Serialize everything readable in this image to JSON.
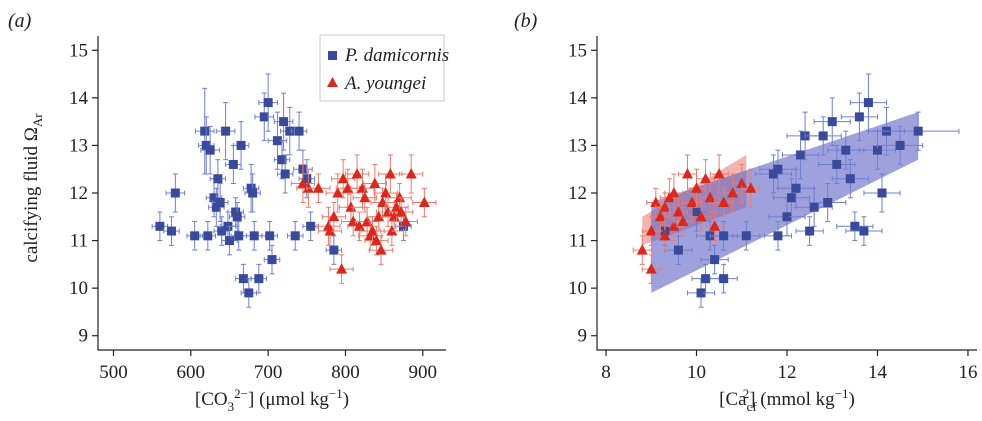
{
  "colors": {
    "series_blue": "#3a4a9a",
    "series_red": "#d8291f",
    "errbar_blue": "#6f7fd0",
    "errbar_red": "#f07a6c",
    "band": "#5e62c4",
    "axis": "#222222"
  },
  "chart_data": [
    {
      "type": "scatter",
      "panel_label": "(a)",
      "xlabel": "[CO3 2−] (μmol kg−1)",
      "ylabel": "calcifying fluid ΩAr",
      "xlim": [
        480,
        930
      ],
      "ylim": [
        8.7,
        15.3
      ],
      "xticks": [
        500,
        600,
        700,
        800,
        900
      ],
      "yticks": [
        9,
        10,
        11,
        12,
        13,
        14,
        15
      ],
      "legend": {
        "position": "top-right",
        "entries": [
          "P. damicornis",
          "A. youngei"
        ]
      },
      "grid": false,
      "series": [
        {
          "name": "P. damicornis",
          "marker": "square",
          "points": [
            {
              "x": 560,
              "y": 11.3,
              "xe": 10,
              "ye": 0.3
            },
            {
              "x": 575,
              "y": 11.2,
              "xe": 10,
              "ye": 0.3
            },
            {
              "x": 580,
              "y": 12.0,
              "xe": 12,
              "ye": 0.4
            },
            {
              "x": 605,
              "y": 11.1,
              "xe": 10,
              "ye": 0.3
            },
            {
              "x": 618,
              "y": 13.3,
              "xe": 12,
              "ye": 0.9
            },
            {
              "x": 620,
              "y": 13.0,
              "xe": 10,
              "ye": 0.6
            },
            {
              "x": 622,
              "y": 11.1,
              "xe": 10,
              "ye": 0.3
            },
            {
              "x": 625,
              "y": 12.9,
              "xe": 12,
              "ye": 0.5
            },
            {
              "x": 630,
              "y": 11.9,
              "xe": 10,
              "ye": 0.4
            },
            {
              "x": 633,
              "y": 11.7,
              "xe": 10,
              "ye": 0.4
            },
            {
              "x": 635,
              "y": 12.3,
              "xe": 10,
              "ye": 0.4
            },
            {
              "x": 638,
              "y": 11.8,
              "xe": 10,
              "ye": 0.4
            },
            {
              "x": 640,
              "y": 11.2,
              "xe": 10,
              "ye": 0.3
            },
            {
              "x": 645,
              "y": 13.3,
              "xe": 12,
              "ye": 0.6
            },
            {
              "x": 648,
              "y": 11.3,
              "xe": 10,
              "ye": 0.3
            },
            {
              "x": 650,
              "y": 11.0,
              "xe": 10,
              "ye": 0.3
            },
            {
              "x": 655,
              "y": 12.6,
              "xe": 10,
              "ye": 0.4
            },
            {
              "x": 658,
              "y": 11.6,
              "xe": 10,
              "ye": 0.3
            },
            {
              "x": 660,
              "y": 11.5,
              "xe": 10,
              "ye": 0.3
            },
            {
              "x": 662,
              "y": 11.1,
              "xe": 10,
              "ye": 0.3
            },
            {
              "x": 665,
              "y": 13.0,
              "xe": 10,
              "ye": 0.5
            },
            {
              "x": 668,
              "y": 10.2,
              "xe": 10,
              "ye": 0.3
            },
            {
              "x": 675,
              "y": 9.9,
              "xe": 10,
              "ye": 0.3
            },
            {
              "x": 678,
              "y": 12.1,
              "xe": 10,
              "ye": 0.5
            },
            {
              "x": 680,
              "y": 12.0,
              "xe": 10,
              "ye": 0.4
            },
            {
              "x": 682,
              "y": 11.1,
              "xe": 10,
              "ye": 0.3
            },
            {
              "x": 688,
              "y": 10.2,
              "xe": 10,
              "ye": 0.3
            },
            {
              "x": 695,
              "y": 13.6,
              "xe": 12,
              "ye": 0.5
            },
            {
              "x": 700,
              "y": 13.9,
              "xe": 12,
              "ye": 0.6
            },
            {
              "x": 702,
              "y": 11.1,
              "xe": 10,
              "ye": 0.3
            },
            {
              "x": 705,
              "y": 10.6,
              "xe": 10,
              "ye": 0.3
            },
            {
              "x": 712,
              "y": 13.1,
              "xe": 12,
              "ye": 0.6
            },
            {
              "x": 718,
              "y": 12.7,
              "xe": 10,
              "ye": 0.4
            },
            {
              "x": 720,
              "y": 13.5,
              "xe": 12,
              "ye": 0.6
            },
            {
              "x": 722,
              "y": 12.4,
              "xe": 10,
              "ye": 0.4
            },
            {
              "x": 728,
              "y": 13.3,
              "xe": 12,
              "ye": 0.5
            },
            {
              "x": 735,
              "y": 11.1,
              "xe": 10,
              "ye": 0.3
            },
            {
              "x": 740,
              "y": 13.3,
              "xe": 10,
              "ye": 0.4
            },
            {
              "x": 745,
              "y": 12.5,
              "xe": 12,
              "ye": 0.4
            },
            {
              "x": 750,
              "y": 12.3,
              "xe": 10,
              "ye": 0.4
            },
            {
              "x": 755,
              "y": 11.3,
              "xe": 10,
              "ye": 0.3
            },
            {
              "x": 785,
              "y": 10.8,
              "xe": 10,
              "ye": 0.3
            },
            {
              "x": 875,
              "y": 11.3,
              "xe": 10,
              "ye": 0.3
            }
          ]
        },
        {
          "name": "A. youngei",
          "marker": "triangle",
          "points": [
            {
              "x": 745,
              "y": 12.2,
              "xe": 15,
              "ye": 0.4
            },
            {
              "x": 752,
              "y": 12.1,
              "xe": 15,
              "ye": 0.4
            },
            {
              "x": 765,
              "y": 12.1,
              "xe": 15,
              "ye": 0.3
            },
            {
              "x": 778,
              "y": 11.3,
              "xe": 15,
              "ye": 0.4
            },
            {
              "x": 780,
              "y": 11.2,
              "xe": 15,
              "ye": 0.3
            },
            {
              "x": 785,
              "y": 11.5,
              "xe": 15,
              "ye": 0.3
            },
            {
              "x": 790,
              "y": 12.0,
              "xe": 15,
              "ye": 0.4
            },
            {
              "x": 795,
              "y": 10.4,
              "xe": 15,
              "ye": 0.3
            },
            {
              "x": 797,
              "y": 12.3,
              "xe": 15,
              "ye": 0.4
            },
            {
              "x": 803,
              "y": 12.1,
              "xe": 15,
              "ye": 0.4
            },
            {
              "x": 807,
              "y": 11.7,
              "xe": 15,
              "ye": 0.3
            },
            {
              "x": 810,
              "y": 11.4,
              "xe": 15,
              "ye": 0.3
            },
            {
              "x": 815,
              "y": 12.4,
              "xe": 15,
              "ye": 0.4
            },
            {
              "x": 818,
              "y": 11.3,
              "xe": 15,
              "ye": 0.3
            },
            {
              "x": 822,
              "y": 12.1,
              "xe": 15,
              "ye": 0.4
            },
            {
              "x": 825,
              "y": 11.9,
              "xe": 15,
              "ye": 0.3
            },
            {
              "x": 828,
              "y": 11.4,
              "xe": 15,
              "ye": 0.3
            },
            {
              "x": 832,
              "y": 11.1,
              "xe": 15,
              "ye": 0.3
            },
            {
              "x": 835,
              "y": 11.2,
              "xe": 15,
              "ye": 0.3
            },
            {
              "x": 838,
              "y": 12.2,
              "xe": 15,
              "ye": 0.4
            },
            {
              "x": 840,
              "y": 11.0,
              "xe": 15,
              "ye": 0.3
            },
            {
              "x": 843,
              "y": 11.5,
              "xe": 15,
              "ye": 0.3
            },
            {
              "x": 846,
              "y": 10.8,
              "xe": 15,
              "ye": 0.3
            },
            {
              "x": 848,
              "y": 11.8,
              "xe": 15,
              "ye": 0.3
            },
            {
              "x": 852,
              "y": 12.0,
              "xe": 15,
              "ye": 0.4
            },
            {
              "x": 855,
              "y": 11.6,
              "xe": 15,
              "ye": 0.3
            },
            {
              "x": 858,
              "y": 12.4,
              "xe": 15,
              "ye": 0.4
            },
            {
              "x": 860,
              "y": 11.2,
              "xe": 15,
              "ye": 0.3
            },
            {
              "x": 863,
              "y": 11.5,
              "xe": 15,
              "ye": 0.3
            },
            {
              "x": 866,
              "y": 11.7,
              "xe": 15,
              "ye": 0.3
            },
            {
              "x": 870,
              "y": 11.9,
              "xe": 15,
              "ye": 0.3
            },
            {
              "x": 872,
              "y": 11.6,
              "xe": 15,
              "ye": 0.3
            },
            {
              "x": 878,
              "y": 11.4,
              "xe": 15,
              "ye": 0.3
            },
            {
              "x": 885,
              "y": 12.4,
              "xe": 15,
              "ye": 0.4
            },
            {
              "x": 902,
              "y": 11.8,
              "xe": 15,
              "ye": 0.3
            }
          ]
        }
      ]
    },
    {
      "type": "scatter",
      "panel_label": "(b)",
      "xlabel": "[Ca cf 2] (mmol kg−1)",
      "ylabel": "",
      "xlim": [
        7.8,
        16.2
      ],
      "ylim": [
        8.7,
        15.3
      ],
      "xticks": [
        8,
        10,
        12,
        14,
        16
      ],
      "yticks": [
        9,
        10,
        11,
        12,
        13,
        14,
        15
      ],
      "grid": false,
      "bands": [
        {
          "name": "red-band",
          "x": [
            8.8,
            11.1
          ],
          "y_lower": [
            10.9,
            11.7
          ],
          "y_upper": [
            11.5,
            12.8
          ]
        },
        {
          "name": "blue-band",
          "x": [
            9.0,
            14.9
          ],
          "y_lower": [
            9.9,
            12.7
          ],
          "y_upper": [
            11.8,
            13.7
          ]
        }
      ],
      "series": [
        {
          "name": "P. damicornis",
          "marker": "square",
          "points": [
            {
              "x": 9.3,
              "y": 11.2,
              "xe": 0.3,
              "ye": 0.3
            },
            {
              "x": 9.6,
              "y": 10.8,
              "xe": 0.3,
              "ye": 0.3
            },
            {
              "x": 10.0,
              "y": 11.6,
              "xe": 0.3,
              "ye": 0.4
            },
            {
              "x": 10.1,
              "y": 9.9,
              "xe": 0.3,
              "ye": 0.3
            },
            {
              "x": 10.2,
              "y": 10.2,
              "xe": 0.3,
              "ye": 0.3
            },
            {
              "x": 10.3,
              "y": 11.1,
              "xe": 0.3,
              "ye": 0.3
            },
            {
              "x": 10.4,
              "y": 10.6,
              "xe": 0.3,
              "ye": 0.3
            },
            {
              "x": 10.6,
              "y": 11.1,
              "xe": 0.3,
              "ye": 0.3
            },
            {
              "x": 10.6,
              "y": 10.2,
              "xe": 0.3,
              "ye": 0.3
            },
            {
              "x": 11.1,
              "y": 11.1,
              "xe": 0.3,
              "ye": 0.3
            },
            {
              "x": 11.7,
              "y": 12.4,
              "xe": 0.4,
              "ye": 0.4
            },
            {
              "x": 11.8,
              "y": 11.1,
              "xe": 0.3,
              "ye": 0.3
            },
            {
              "x": 11.8,
              "y": 12.5,
              "xe": 0.4,
              "ye": 0.4
            },
            {
              "x": 12.0,
              "y": 11.5,
              "xe": 0.4,
              "ye": 0.4
            },
            {
              "x": 12.1,
              "y": 11.9,
              "xe": 0.4,
              "ye": 0.4
            },
            {
              "x": 12.2,
              "y": 12.1,
              "xe": 0.4,
              "ye": 0.4
            },
            {
              "x": 12.3,
              "y": 12.8,
              "xe": 0.4,
              "ye": 0.5
            },
            {
              "x": 12.4,
              "y": 13.2,
              "xe": 0.4,
              "ye": 0.5
            },
            {
              "x": 12.5,
              "y": 11.2,
              "xe": 0.3,
              "ye": 0.3
            },
            {
              "x": 12.6,
              "y": 11.7,
              "xe": 0.4,
              "ye": 0.4
            },
            {
              "x": 12.8,
              "y": 13.2,
              "xe": 0.4,
              "ye": 0.4
            },
            {
              "x": 12.9,
              "y": 11.8,
              "xe": 0.4,
              "ye": 0.4
            },
            {
              "x": 13.0,
              "y": 13.5,
              "xe": 0.4,
              "ye": 0.5
            },
            {
              "x": 13.1,
              "y": 12.6,
              "xe": 0.4,
              "ye": 0.4
            },
            {
              "x": 13.3,
              "y": 12.9,
              "xe": 0.4,
              "ye": 0.4
            },
            {
              "x": 13.4,
              "y": 12.3,
              "xe": 0.4,
              "ye": 0.4
            },
            {
              "x": 13.5,
              "y": 11.3,
              "xe": 0.4,
              "ye": 0.3
            },
            {
              "x": 13.6,
              "y": 13.6,
              "xe": 0.4,
              "ye": 0.5
            },
            {
              "x": 13.7,
              "y": 11.2,
              "xe": 0.4,
              "ye": 0.3
            },
            {
              "x": 13.8,
              "y": 13.9,
              "xe": 0.4,
              "ye": 0.6
            },
            {
              "x": 14.0,
              "y": 12.9,
              "xe": 0.4,
              "ye": 0.4
            },
            {
              "x": 14.1,
              "y": 12.0,
              "xe": 0.4,
              "ye": 0.4
            },
            {
              "x": 14.2,
              "y": 13.3,
              "xe": 0.4,
              "ye": 0.5
            },
            {
              "x": 14.5,
              "y": 13.0,
              "xe": 0.5,
              "ye": 0.4
            },
            {
              "x": 14.9,
              "y": 13.3,
              "xe": 0.9,
              "ye": 0.4
            }
          ]
        },
        {
          "name": "A. youngei",
          "marker": "triangle",
          "points": [
            {
              "x": 8.8,
              "y": 10.8,
              "xe": 0.2,
              "ye": 0.3
            },
            {
              "x": 9.0,
              "y": 11.2,
              "xe": 0.2,
              "ye": 0.3
            },
            {
              "x": 9.0,
              "y": 10.4,
              "xe": 0.2,
              "ye": 0.3
            },
            {
              "x": 9.1,
              "y": 11.8,
              "xe": 0.2,
              "ye": 0.3
            },
            {
              "x": 9.2,
              "y": 11.5,
              "xe": 0.2,
              "ye": 0.3
            },
            {
              "x": 9.3,
              "y": 11.7,
              "xe": 0.2,
              "ye": 0.3
            },
            {
              "x": 9.3,
              "y": 11.1,
              "xe": 0.2,
              "ye": 0.3
            },
            {
              "x": 9.4,
              "y": 11.9,
              "xe": 0.2,
              "ye": 0.4
            },
            {
              "x": 9.5,
              "y": 11.3,
              "xe": 0.2,
              "ye": 0.3
            },
            {
              "x": 9.5,
              "y": 12.0,
              "xe": 0.2,
              "ye": 0.4
            },
            {
              "x": 9.6,
              "y": 11.6,
              "xe": 0.2,
              "ye": 0.3
            },
            {
              "x": 9.7,
              "y": 11.4,
              "xe": 0.2,
              "ye": 0.3
            },
            {
              "x": 9.8,
              "y": 12.4,
              "xe": 0.2,
              "ye": 0.4
            },
            {
              "x": 9.9,
              "y": 11.8,
              "xe": 0.2,
              "ye": 0.3
            },
            {
              "x": 10.0,
              "y": 12.1,
              "xe": 0.2,
              "ye": 0.4
            },
            {
              "x": 10.1,
              "y": 11.5,
              "xe": 0.2,
              "ye": 0.3
            },
            {
              "x": 10.2,
              "y": 12.3,
              "xe": 0.2,
              "ye": 0.4
            },
            {
              "x": 10.3,
              "y": 11.9,
              "xe": 0.2,
              "ye": 0.3
            },
            {
              "x": 10.4,
              "y": 11.3,
              "xe": 0.2,
              "ye": 0.3
            },
            {
              "x": 10.5,
              "y": 12.4,
              "xe": 0.2,
              "ye": 0.4
            },
            {
              "x": 10.6,
              "y": 11.8,
              "xe": 0.2,
              "ye": 0.3
            },
            {
              "x": 10.8,
              "y": 12.0,
              "xe": 0.2,
              "ye": 0.4
            },
            {
              "x": 11.0,
              "y": 12.2,
              "xe": 0.2,
              "ye": 0.4
            },
            {
              "x": 11.2,
              "y": 12.1,
              "xe": 0.2,
              "ye": 0.4
            }
          ]
        }
      ]
    }
  ]
}
